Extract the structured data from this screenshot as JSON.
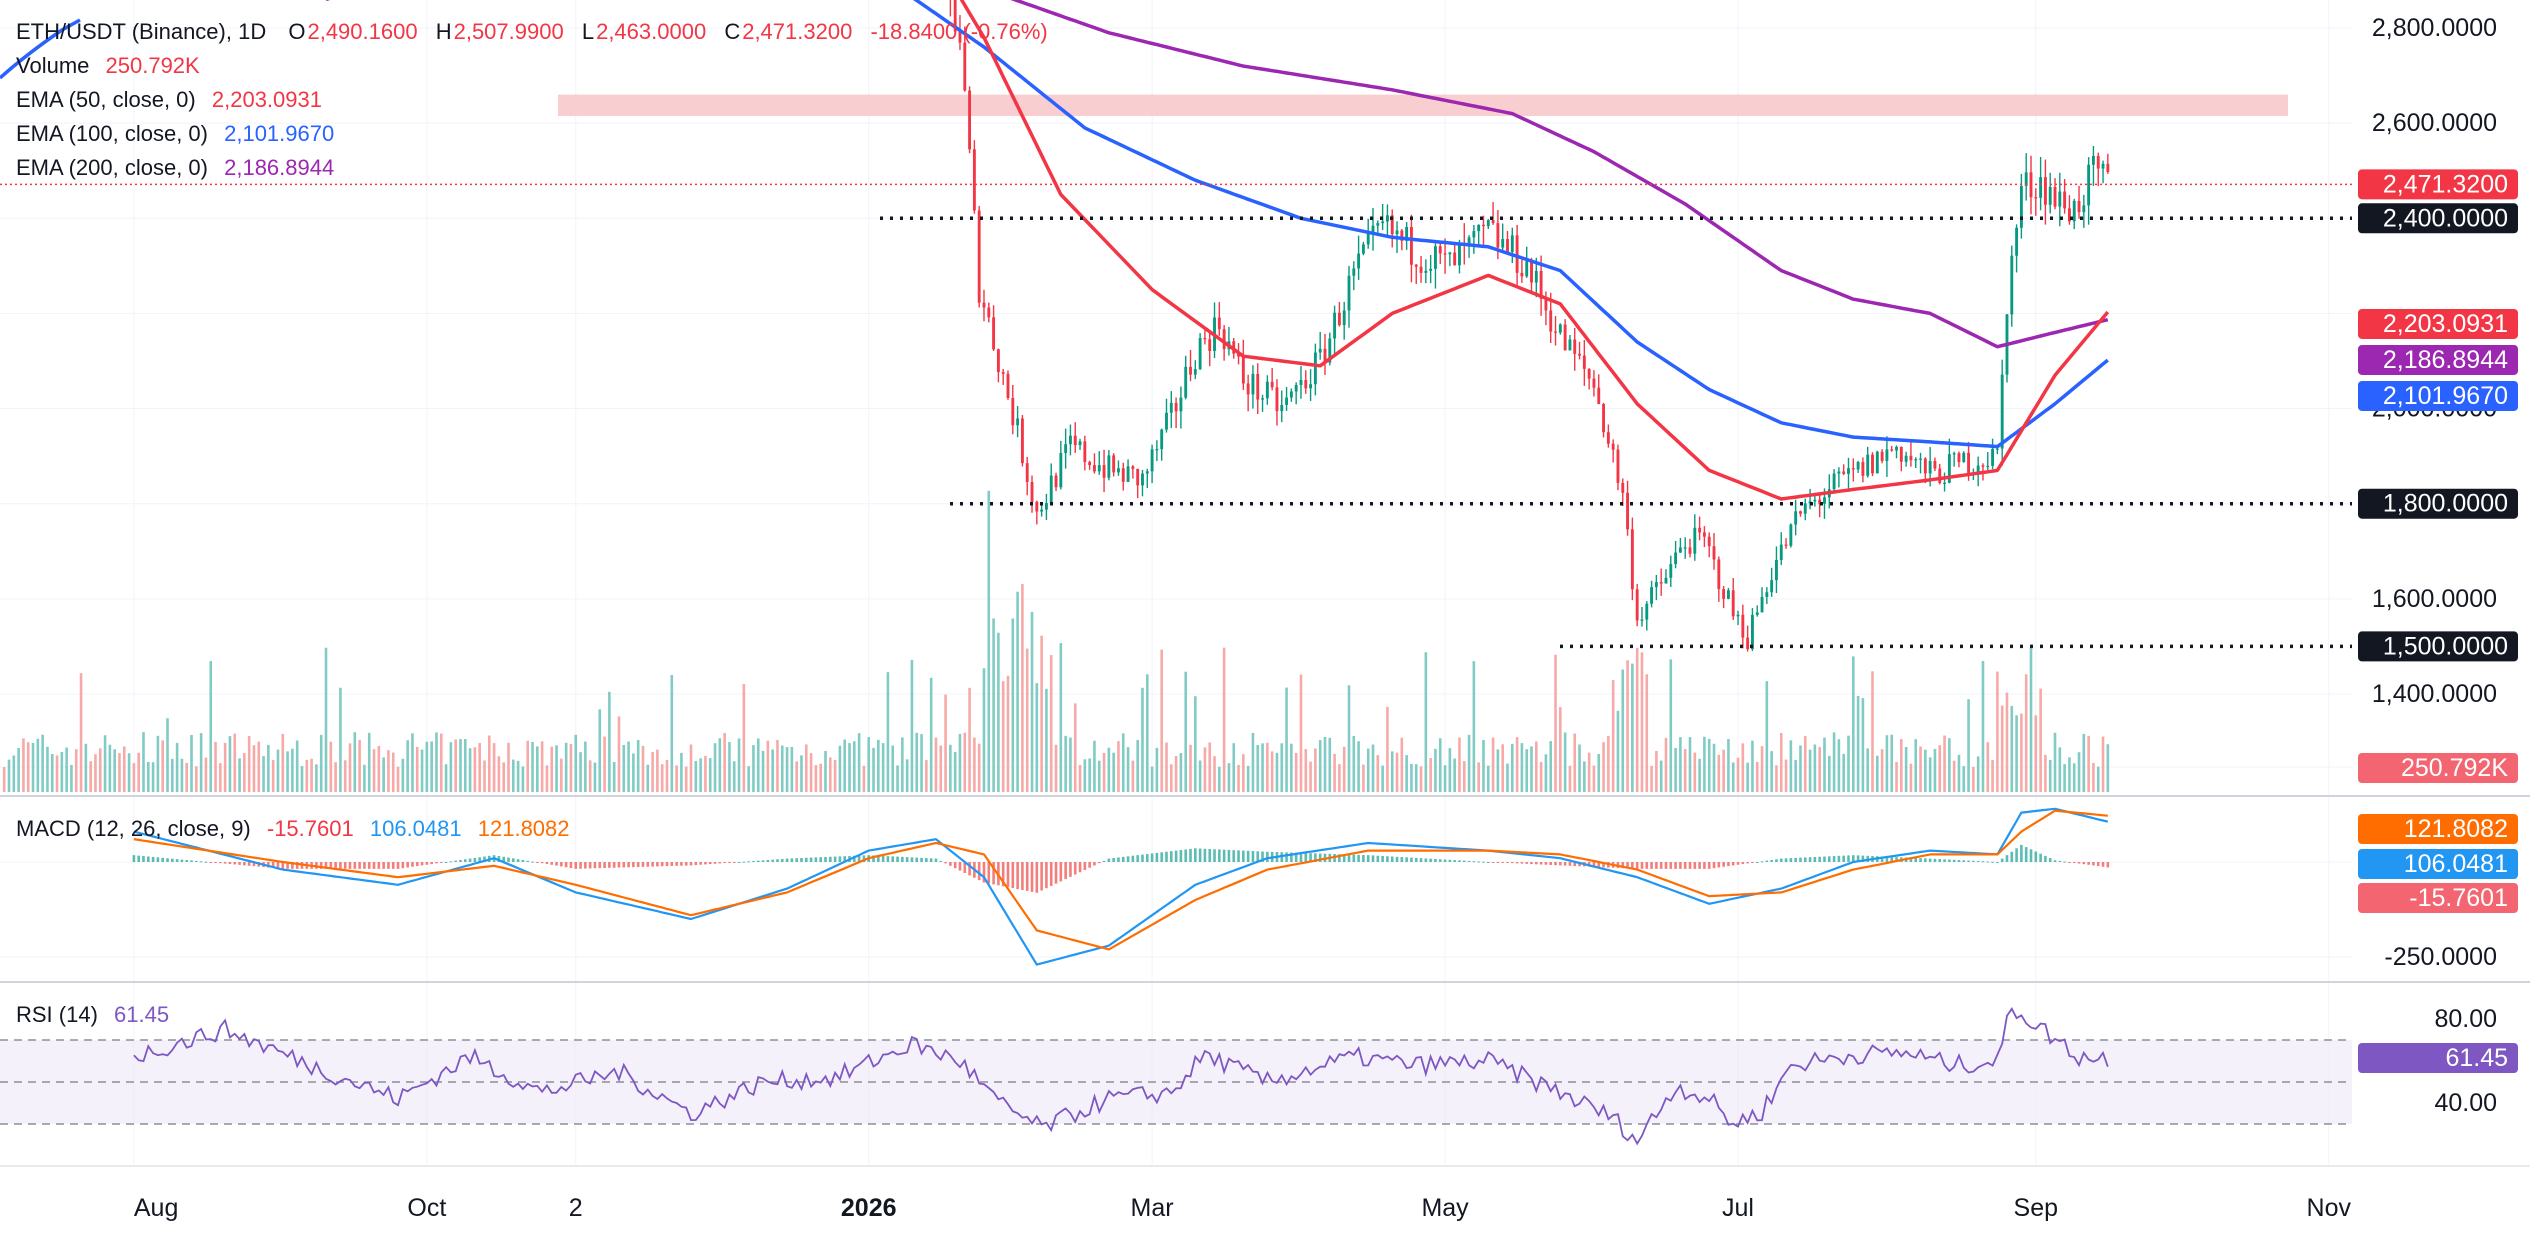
{
  "header": {
    "symbol": "ETH/USDT (Binance), 1D",
    "o_label": "O",
    "o_value": "2,490.1600",
    "h_label": "H",
    "h_value": "2,507.9900",
    "l_label": "L",
    "l_value": "2,463.0000",
    "c_label": "C",
    "c_value": "2,471.3200",
    "change": "-18.8400 (-0.76%)"
  },
  "indicators": [
    {
      "label": "Volume",
      "value": "250.792K",
      "color": "#f23645"
    },
    {
      "label": "EMA (50, close, 0)",
      "value": "2,203.0931",
      "color": "#f23645"
    },
    {
      "label": "EMA (100, close, 0)",
      "value": "2,101.9670",
      "color": "#2962ff"
    },
    {
      "label": "EMA (200, close, 0)",
      "value": "2,186.8944",
      "color": "#9c27b0"
    }
  ],
  "macd_legend": {
    "label": "MACD (12, 26, close, 9)",
    "hist": "-15.7601",
    "macd": "106.0481",
    "signal": "121.8082"
  },
  "rsi_legend": {
    "label": "RSI (14)",
    "value": "61.45"
  },
  "colors": {
    "up": "#089981",
    "down": "#f23645",
    "ema50": "#f23645",
    "ema100": "#2962ff",
    "ema200": "#9c27b0",
    "macd": "#2196f3",
    "signal": "#ff6d00",
    "rsi": "#7e57c2",
    "resistance_zone": "#f7c5c8"
  },
  "chart_data": [
    {
      "type": "candlestick",
      "title": "ETH/USDT (Binance), 1D",
      "x_ticks": [
        "Aug",
        "Oct",
        "2",
        "2026",
        "Mar",
        "May",
        "Jul",
        "Sep",
        "Nov"
      ],
      "y_ticks": [
        "2,800.0000",
        "2,600.0000",
        "2,000.0000",
        "1,600.0000",
        "1,400.0000"
      ],
      "ylim": [
        1120,
        2860
      ],
      "horizontal_levels": [
        {
          "value": 2400,
          "label": "2,400.0000"
        },
        {
          "value": 1800,
          "label": "1,800.0000"
        },
        {
          "value": 1500,
          "label": "1,500.0000"
        }
      ],
      "resistance_zone": [
        2615,
        2660
      ],
      "price_waypoints": [
        [
          "2026-01-15",
          2980
        ],
        [
          "2026-01-20",
          2780
        ],
        [
          "2026-01-24",
          2260
        ],
        [
          "2026-02-01",
          1950
        ],
        [
          "2026-02-05",
          1780
        ],
        [
          "2026-02-12",
          1920
        ],
        [
          "2026-02-20",
          1870
        ],
        [
          "2026-02-27",
          1850
        ],
        [
          "2026-03-05",
          1980
        ],
        [
          "2026-03-10",
          2120
        ],
        [
          "2026-03-15",
          2180
        ],
        [
          "2026-03-20",
          2060
        ],
        [
          "2026-03-28",
          2000
        ],
        [
          "2026-04-05",
          2100
        ],
        [
          "2026-04-12",
          2280
        ],
        [
          "2026-04-18",
          2380
        ],
        [
          "2026-04-25",
          2330
        ],
        [
          "2026-05-02",
          2300
        ],
        [
          "2026-05-10",
          2370
        ],
        [
          "2026-05-18",
          2300
        ],
        [
          "2026-05-25",
          2150
        ],
        [
          "2026-06-01",
          2050
        ],
        [
          "2026-06-07",
          1820
        ],
        [
          "2026-06-10",
          1560
        ],
        [
          "2026-06-15",
          1630
        ],
        [
          "2026-06-20",
          1720
        ],
        [
          "2026-06-24",
          1720
        ],
        [
          "2026-06-30",
          1570
        ],
        [
          "2026-07-03",
          1520
        ],
        [
          "2026-07-08",
          1660
        ],
        [
          "2026-07-14",
          1780
        ],
        [
          "2026-07-20",
          1830
        ],
        [
          "2026-07-28",
          1880
        ],
        [
          "2026-08-03",
          1920
        ],
        [
          "2026-08-10",
          1860
        ],
        [
          "2026-08-18",
          1890
        ],
        [
          "2026-08-24",
          1900
        ],
        [
          "2026-08-26",
          2230
        ],
        [
          "2026-08-29",
          2460
        ],
        [
          "2026-09-02",
          2480
        ],
        [
          "2026-09-06",
          2430
        ],
        [
          "2026-09-09",
          2420
        ],
        [
          "2026-09-13",
          2490
        ],
        [
          "2026-09-16",
          2471
        ]
      ],
      "ema50_waypoints": [
        [
          "2026-01-15",
          2950
        ],
        [
          "2026-01-25",
          2780
        ],
        [
          "2026-02-10",
          2450
        ],
        [
          "2026-03-01",
          2250
        ],
        [
          "2026-03-20",
          2110
        ],
        [
          "2026-04-05",
          2090
        ],
        [
          "2026-04-20",
          2200
        ],
        [
          "2026-05-10",
          2280
        ],
        [
          "2026-05-25",
          2220
        ],
        [
          "2026-06-10",
          2010
        ],
        [
          "2026-06-25",
          1870
        ],
        [
          "2026-07-10",
          1810
        ],
        [
          "2026-07-25",
          1830
        ],
        [
          "2026-08-10",
          1850
        ],
        [
          "2026-08-24",
          1870
        ],
        [
          "2026-09-05",
          2070
        ],
        [
          "2026-09-16",
          2203.09
        ]
      ],
      "ema100_waypoints": [
        [
          "2026-01-05",
          2900
        ],
        [
          "2026-01-25",
          2760
        ],
        [
          "2026-02-15",
          2590
        ],
        [
          "2026-03-10",
          2480
        ],
        [
          "2026-04-01",
          2400
        ],
        [
          "2026-04-20",
          2360
        ],
        [
          "2026-05-10",
          2340
        ],
        [
          "2026-05-25",
          2290
        ],
        [
          "2026-06-10",
          2140
        ],
        [
          "2026-06-25",
          2040
        ],
        [
          "2026-07-10",
          1970
        ],
        [
          "2026-07-25",
          1940
        ],
        [
          "2026-08-10",
          1930
        ],
        [
          "2026-08-24",
          1920
        ],
        [
          "2026-09-05",
          2010
        ],
        [
          "2026-09-16",
          2101.97
        ]
      ],
      "ema200_waypoints": [
        [
          "2025-09-10",
          2860
        ],
        [
          "2025-10-20",
          2990
        ],
        [
          "2025-12-10",
          2990
        ],
        [
          "2026-01-20",
          2900
        ],
        [
          "2026-02-20",
          2790
        ],
        [
          "2026-03-20",
          2720
        ],
        [
          "2026-04-20",
          2670
        ],
        [
          "2026-05-15",
          2620
        ],
        [
          "2026-06-01",
          2540
        ],
        [
          "2026-06-20",
          2430
        ],
        [
          "2026-07-10",
          2290
        ],
        [
          "2026-07-25",
          2230
        ],
        [
          "2026-08-10",
          2200
        ],
        [
          "2026-08-24",
          2130
        ],
        [
          "2026-09-05",
          2160
        ],
        [
          "2026-09-16",
          2186.89
        ]
      ],
      "price_labels": [
        {
          "value": 2471.32,
          "label": "2,471.3200",
          "kind": "last"
        },
        {
          "value": 2203.0931,
          "label": "2,203.0931",
          "kind": "ema50"
        },
        {
          "value": 2186.8944,
          "label": "2,186.8944",
          "kind": "ema200"
        },
        {
          "value": 2101.967,
          "label": "2,101.9670",
          "kind": "ema100"
        }
      ],
      "volume_label": "250.792K"
    },
    {
      "type": "line",
      "title": "MACD (12, 26, close, 9)",
      "y_ticks": [
        "-250.0000"
      ],
      "ylim": [
        -350,
        400
      ],
      "series": [
        {
          "name": "MACD",
          "last": 106.0481
        },
        {
          "name": "Signal",
          "last": 121.8082
        },
        {
          "name": "Histogram",
          "last": -15.7601
        }
      ],
      "macd_waypoints": [
        [
          "2025-08-01",
          80
        ],
        [
          "2025-09-01",
          -20
        ],
        [
          "2025-09-25",
          -60
        ],
        [
          "2025-10-15",
          10
        ],
        [
          "2025-11-01",
          -80
        ],
        [
          "2025-11-25",
          -150
        ],
        [
          "2025-12-15",
          -70
        ],
        [
          "2026-01-01",
          30
        ],
        [
          "2026-01-15",
          60
        ],
        [
          "2026-01-25",
          -40
        ],
        [
          "2026-02-05",
          -270
        ],
        [
          "2026-02-20",
          -220
        ],
        [
          "2026-03-10",
          -60
        ],
        [
          "2026-03-25",
          10
        ],
        [
          "2026-04-15",
          50
        ],
        [
          "2026-05-10",
          30
        ],
        [
          "2026-05-25",
          10
        ],
        [
          "2026-06-10",
          -40
        ],
        [
          "2026-06-25",
          -110
        ],
        [
          "2026-07-10",
          -70
        ],
        [
          "2026-07-25",
          0
        ],
        [
          "2026-08-10",
          30
        ],
        [
          "2026-08-24",
          20
        ],
        [
          "2026-08-29",
          130
        ],
        [
          "2026-09-05",
          140
        ],
        [
          "2026-09-16",
          106.05
        ]
      ],
      "signal_waypoints": [
        [
          "2025-08-01",
          60
        ],
        [
          "2025-09-01",
          0
        ],
        [
          "2025-09-25",
          -40
        ],
        [
          "2025-10-15",
          -10
        ],
        [
          "2025-11-01",
          -60
        ],
        [
          "2025-11-25",
          -140
        ],
        [
          "2025-12-15",
          -80
        ],
        [
          "2026-01-01",
          10
        ],
        [
          "2026-01-15",
          50
        ],
        [
          "2026-01-25",
          20
        ],
        [
          "2026-02-05",
          -180
        ],
        [
          "2026-02-20",
          -230
        ],
        [
          "2026-03-10",
          -100
        ],
        [
          "2026-03-25",
          -20
        ],
        [
          "2026-04-15",
          30
        ],
        [
          "2026-05-10",
          30
        ],
        [
          "2026-05-25",
          20
        ],
        [
          "2026-06-10",
          -20
        ],
        [
          "2026-06-25",
          -90
        ],
        [
          "2026-07-10",
          -80
        ],
        [
          "2026-07-25",
          -20
        ],
        [
          "2026-08-10",
          20
        ],
        [
          "2026-08-24",
          20
        ],
        [
          "2026-08-29",
          80
        ],
        [
          "2026-09-05",
          135
        ],
        [
          "2026-09-16",
          121.81
        ]
      ]
    },
    {
      "type": "line",
      "title": "RSI (14)",
      "y_ticks": [
        "80.00",
        "40.00"
      ],
      "ylim": [
        15,
        95
      ],
      "bands": [
        70,
        50,
        30
      ],
      "series": [
        {
          "name": "RSI",
          "last": 61.45
        }
      ],
      "rsi_waypoints": [
        [
          "2025-08-01",
          62
        ],
        [
          "2025-08-20",
          75
        ],
        [
          "2025-09-10",
          55
        ],
        [
          "2025-09-25",
          42
        ],
        [
          "2025-10-10",
          62
        ],
        [
          "2025-10-25",
          45
        ],
        [
          "2025-11-10",
          55
        ],
        [
          "2025-11-25",
          35
        ],
        [
          "2025-12-10",
          50
        ],
        [
          "2025-12-25",
          52
        ],
        [
          "2026-01-10",
          68
        ],
        [
          "2026-01-20",
          60
        ],
        [
          "2026-01-28",
          40
        ],
        [
          "2026-02-06",
          28
        ],
        [
          "2026-02-20",
          42
        ],
        [
          "2026-03-05",
          45
        ],
        [
          "2026-03-12",
          63
        ],
        [
          "2026-03-25",
          50
        ],
        [
          "2026-04-12",
          62
        ],
        [
          "2026-04-25",
          58
        ],
        [
          "2026-05-10",
          60
        ],
        [
          "2026-05-25",
          45
        ],
        [
          "2026-06-05",
          33
        ],
        [
          "2026-06-10",
          22
        ],
        [
          "2026-06-18",
          48
        ],
        [
          "2026-06-25",
          42
        ],
        [
          "2026-06-30",
          30
        ],
        [
          "2026-07-06",
          36
        ],
        [
          "2026-07-12",
          58
        ],
        [
          "2026-07-25",
          63
        ],
        [
          "2026-08-05",
          64
        ],
        [
          "2026-08-15",
          58
        ],
        [
          "2026-08-24",
          60
        ],
        [
          "2026-08-27",
          86
        ],
        [
          "2026-09-03",
          74
        ],
        [
          "2026-09-10",
          62
        ],
        [
          "2026-09-16",
          61.45
        ]
      ]
    }
  ]
}
